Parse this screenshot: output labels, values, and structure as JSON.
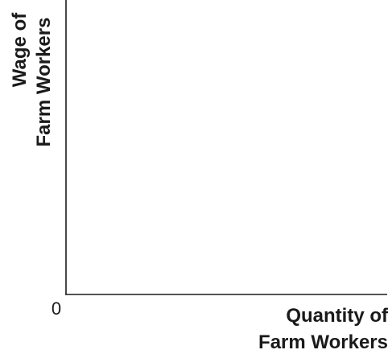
{
  "chart_data": {
    "type": "line",
    "title": "",
    "xlabel": [
      "Quantity of",
      "Farm Workers"
    ],
    "ylabel": [
      "Wage of",
      "Farm Workers"
    ],
    "origin_label": "0",
    "series": [],
    "grid": false,
    "legend": "none",
    "colors": {
      "axis": "#1a1a1a",
      "text": "#1a1a1a",
      "background": "#ffffff"
    }
  }
}
